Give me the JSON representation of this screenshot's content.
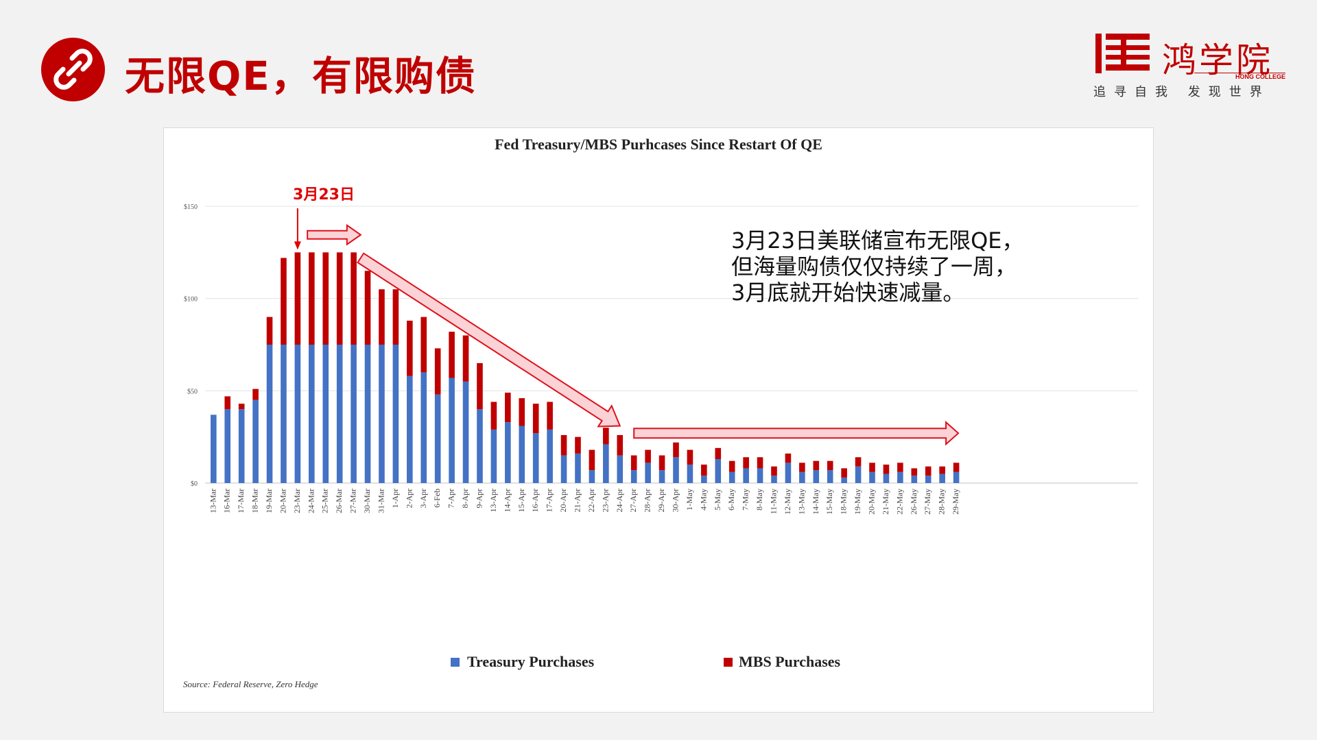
{
  "header": {
    "title": "无限QE，有限购债",
    "icon": "link-icon"
  },
  "brand": {
    "logo_text": "鸿学院",
    "english": "HONG COLLEGE",
    "slogan": "追寻自我 发现世界"
  },
  "callout": {
    "lines": [
      "3月23日美联储宣布无限QE，",
      "但海量购债仅仅持续了一周，",
      "3月底就开始快速减量。"
    ]
  },
  "annotation": {
    "date_label": "3月23日"
  },
  "colors": {
    "brand_red": "#c00000",
    "treasury": "#4472c4",
    "mbs": "#c00000"
  },
  "chart_data": {
    "type": "bar",
    "stacked": true,
    "title": "Fed Treasury/MBS Purhcases Since Restart Of QE",
    "source": "Source: Federal Reserve, Zero Hedge",
    "ylim": [
      0,
      150
    ],
    "yticks": [
      0,
      50,
      100,
      150
    ],
    "ytick_labels": [
      "$0",
      "$50",
      "$100",
      "$150"
    ],
    "grid": true,
    "legend_position": "bottom",
    "categories": [
      "13-Mar",
      "16-Mar",
      "17-Mar",
      "18-Mar",
      "19-Mar",
      "20-Mar",
      "23-Mar",
      "24-Mar",
      "25-Mar",
      "26-Mar",
      "27-Mar",
      "30-Mar",
      "31-Mar",
      "1-Apr",
      "2-Apr",
      "3-Apr",
      "6-Feb",
      "7-Apr",
      "8-Apr",
      "9-Apr",
      "13-Apr",
      "14-Apr",
      "15-Apr",
      "16-Apr",
      "17-Apr",
      "20-Apr",
      "21-Apr",
      "22-Apr",
      "23-Apr",
      "24-Apr",
      "27-Apr",
      "28-Apr",
      "29-Apr",
      "30-Apr",
      "1-May",
      "4-May",
      "5-May",
      "6-May",
      "7-May",
      "8-May",
      "11-May",
      "12-May",
      "13-May",
      "14-May",
      "15-May",
      "18-May",
      "19-May",
      "20-May",
      "21-May",
      "22-May",
      "26-May",
      "27-May",
      "28-May",
      "29-May"
    ],
    "series": [
      {
        "name": "Treasury Purchases",
        "values": [
          37,
          40,
          40,
          45,
          75,
          75,
          75,
          75,
          75,
          75,
          75,
          75,
          75,
          75,
          58,
          60,
          48,
          57,
          55,
          40,
          29,
          33,
          31,
          27,
          29,
          15,
          16,
          7,
          21,
          15,
          7,
          11,
          7,
          14,
          10,
          4,
          13,
          6,
          8,
          8,
          4,
          11,
          6,
          7,
          7,
          3,
          9,
          6,
          5,
          6,
          4,
          4,
          5,
          6
        ]
      },
      {
        "name": "MBS Purchases",
        "values": [
          0,
          7,
          3,
          6,
          15,
          47,
          50,
          50,
          50,
          50,
          50,
          40,
          30,
          30,
          30,
          30,
          25,
          25,
          25,
          25,
          15,
          16,
          15,
          16,
          15,
          11,
          9,
          11,
          9,
          11,
          8,
          7,
          8,
          8,
          8,
          6,
          6,
          6,
          6,
          6,
          5,
          5,
          5,
          5,
          5,
          5,
          5,
          5,
          5,
          5,
          4,
          5,
          4,
          5
        ]
      }
    ]
  }
}
